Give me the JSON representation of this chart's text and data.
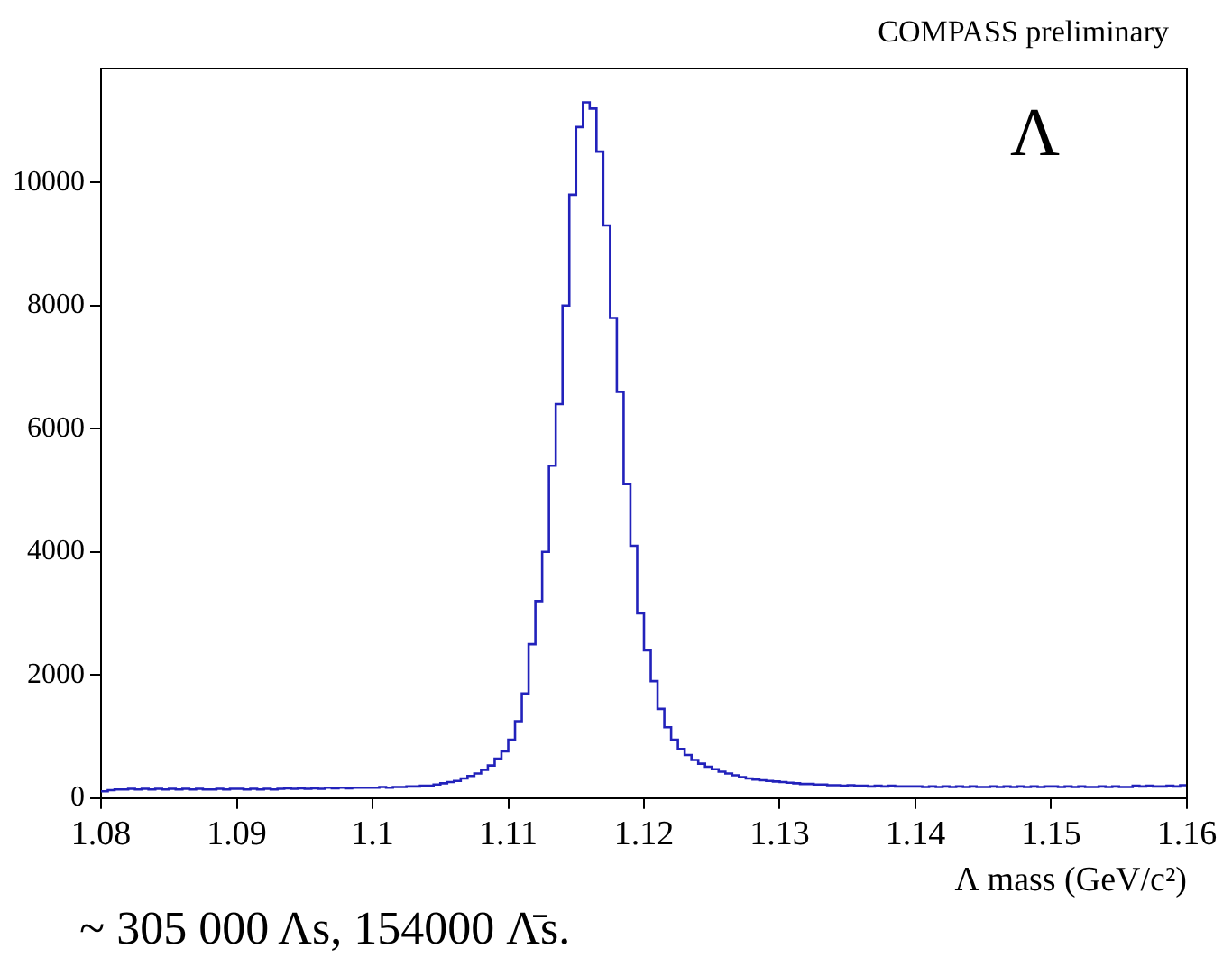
{
  "chart_data": {
    "type": "histogram",
    "xlabel": "Λ mass (GeV/c²)",
    "annotations": [
      "COMPASS preliminary",
      "Λ",
      "~ 305 000 Λs, 154000 Λ̄s."
    ],
    "color": "#2222bb",
    "bins": [
      1.08,
      1.0805,
      1.081,
      1.0815,
      1.082,
      1.0825,
      1.083,
      1.0835,
      1.084,
      1.0845,
      1.085,
      1.0855,
      1.086,
      1.0865,
      1.087,
      1.0875,
      1.088,
      1.0885,
      1.089,
      1.0895,
      1.09,
      1.0905,
      1.091,
      1.0915,
      1.092,
      1.0925,
      1.093,
      1.0935,
      1.094,
      1.0945,
      1.095,
      1.0955,
      1.096,
      1.0965,
      1.097,
      1.0975,
      1.098,
      1.0985,
      1.099,
      1.0995,
      1.1,
      1.1005,
      1.101,
      1.1015,
      1.102,
      1.1025,
      1.103,
      1.1035,
      1.104,
      1.1045,
      1.105,
      1.1055,
      1.106,
      1.1065,
      1.107,
      1.1075,
      1.108,
      1.1085,
      1.109,
      1.1095,
      1.11,
      1.1105,
      1.111,
      1.1115,
      1.112,
      1.1125,
      1.113,
      1.1135,
      1.114,
      1.1145,
      1.115,
      1.1155,
      1.116,
      1.1165,
      1.117,
      1.1175,
      1.118,
      1.1185,
      1.119,
      1.1195,
      1.12,
      1.1205,
      1.121,
      1.1215,
      1.122,
      1.1225,
      1.123,
      1.1235,
      1.124,
      1.1245,
      1.125,
      1.1255,
      1.126,
      1.1265,
      1.127,
      1.1275,
      1.128,
      1.1285,
      1.129,
      1.1295,
      1.13,
      1.1305,
      1.131,
      1.1315,
      1.132,
      1.1325,
      1.133,
      1.1335,
      1.134,
      1.1345,
      1.135,
      1.1355,
      1.136,
      1.1365,
      1.137,
      1.1375,
      1.138,
      1.1385,
      1.139,
      1.1395,
      1.14,
      1.1405,
      1.141,
      1.1415,
      1.142,
      1.1425,
      1.143,
      1.1435,
      1.144,
      1.1445,
      1.145,
      1.1455,
      1.146,
      1.1465,
      1.147,
      1.1475,
      1.148,
      1.1485,
      1.149,
      1.1495,
      1.15,
      1.1505,
      1.151,
      1.1515,
      1.152,
      1.1525,
      1.153,
      1.1535,
      1.154,
      1.1545,
      1.155,
      1.1555,
      1.156,
      1.1565,
      1.157,
      1.1575,
      1.158,
      1.1585,
      1.159,
      1.1595,
      1.16
    ],
    "values": [
      110,
      130,
      140,
      140,
      150,
      140,
      150,
      140,
      150,
      140,
      150,
      140,
      150,
      140,
      150,
      140,
      140,
      150,
      140,
      150,
      150,
      140,
      150,
      140,
      150,
      140,
      150,
      160,
      150,
      160,
      150,
      160,
      150,
      170,
      160,
      170,
      160,
      170,
      170,
      170,
      170,
      180,
      170,
      180,
      180,
      190,
      190,
      200,
      200,
      220,
      240,
      260,
      280,
      320,
      360,
      400,
      460,
      530,
      640,
      760,
      950,
      1250,
      1700,
      2500,
      3200,
      4000,
      5400,
      6400,
      8000,
      9800,
      10900,
      11300,
      11200,
      10500,
      9300,
      7800,
      6600,
      5100,
      4100,
      3000,
      2400,
      1900,
      1450,
      1150,
      950,
      800,
      700,
      620,
      560,
      510,
      470,
      430,
      400,
      370,
      340,
      320,
      300,
      290,
      280,
      270,
      260,
      250,
      240,
      230,
      230,
      220,
      220,
      210,
      210,
      200,
      210,
      200,
      200,
      190,
      200,
      190,
      200,
      190,
      190,
      190,
      190,
      180,
      190,
      180,
      190,
      180,
      190,
      180,
      190,
      180,
      180,
      190,
      180,
      190,
      180,
      190,
      180,
      190,
      180,
      190,
      190,
      180,
      190,
      180,
      190,
      180,
      180,
      190,
      180,
      190,
      180,
      180,
      200,
      190,
      200,
      190,
      190,
      200,
      190,
      210
    ],
    "xlim": [
      1.08,
      1.16
    ],
    "xticks": [
      1.08,
      1.09,
      1.1,
      1.11,
      1.12,
      1.13,
      1.14,
      1.15,
      1.16
    ],
    "ylim": [
      0,
      11850
    ],
    "yticks": [
      0,
      2000,
      4000,
      6000,
      8000,
      10000
    ],
    "grid": false,
    "legend": false
  }
}
